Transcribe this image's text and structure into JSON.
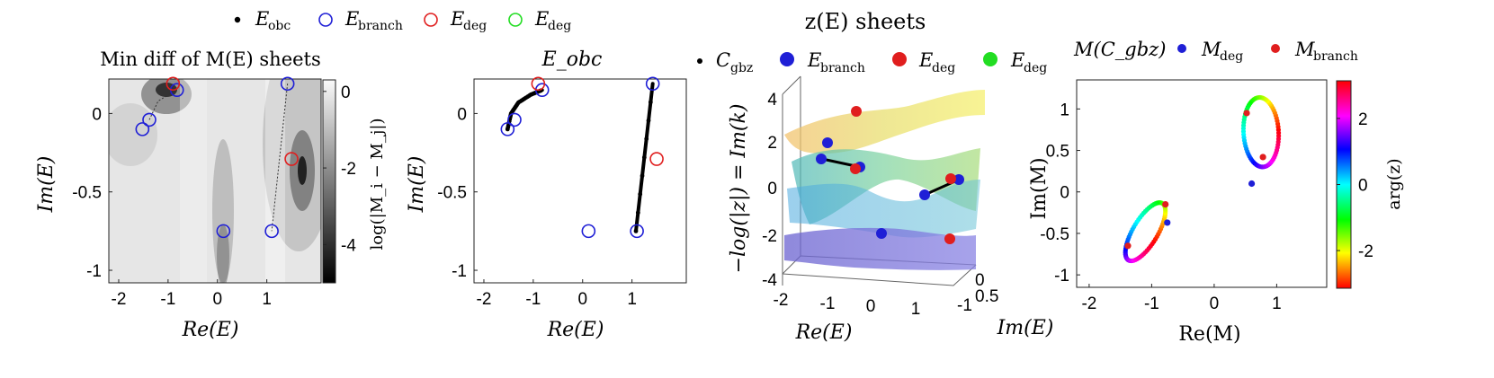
{
  "figure_legend": {
    "items": [
      {
        "label": "E",
        "sub": "obc",
        "marker": "dot",
        "color": "#000000"
      },
      {
        "label": "E",
        "sub": "branch",
        "marker": "ring",
        "color": "#1f1fd6"
      },
      {
        "label": "E",
        "sub": "deg",
        "marker": "ring",
        "color": "#e01e1e"
      },
      {
        "label": "E",
        "sub": "deg",
        "marker": "ring",
        "color": "#22dd22"
      }
    ]
  },
  "chart_data": [
    {
      "type": "heatmap",
      "title": "Min diff of M(E) sheets",
      "xlabel": "Re(E)",
      "ylabel": "Im(E)",
      "xlim": [
        -2.2,
        2.1
      ],
      "ylim": [
        -1.08,
        0.22
      ],
      "xticks": [
        "-2",
        "-1",
        "0",
        "1"
      ],
      "yticks": [
        "-1",
        "-0.5",
        "0"
      ],
      "xtick_values": [
        -2,
        -1,
        0,
        1
      ],
      "ytick_values": [
        -1,
        -0.5,
        0
      ],
      "colorbar": {
        "label": "log(|M_i − M_j|)",
        "ticks": [
          "0",
          "-2",
          "-4"
        ],
        "tick_values": [
          0,
          -2,
          -4
        ],
        "range": [
          -5,
          0.3
        ]
      },
      "branch_points": [
        [
          -1.52,
          -0.1
        ],
        [
          -1.38,
          -0.04
        ],
        [
          -0.82,
          0.15
        ],
        [
          1.42,
          0.19
        ],
        [
          1.1,
          -0.75
        ],
        [
          0.12,
          -0.75
        ]
      ],
      "deg_points": [
        [
          -0.9,
          0.19
        ],
        [
          1.5,
          -0.29
        ]
      ],
      "dotted_lines": [
        [
          [
            -1.38,
            -0.04
          ],
          [
            -1.2,
            0.08
          ],
          [
            -0.82,
            0.15
          ]
        ],
        [
          [
            1.42,
            0.19
          ],
          [
            1.1,
            -0.75
          ]
        ]
      ]
    },
    {
      "type": "scatter",
      "title": "E_obc",
      "xlabel": "Re(E)",
      "ylabel": "Im(E)",
      "xlim": [
        -2.2,
        2.1
      ],
      "ylim": [
        -1.08,
        0.22
      ],
      "xticks": [
        "-2",
        "-1",
        "0",
        "1"
      ],
      "yticks": [
        "-1",
        "-0.5",
        "0"
      ],
      "xtick_values": [
        -2,
        -1,
        0,
        1
      ],
      "ytick_values": [
        -1,
        -0.5,
        0
      ],
      "obc_arcs": [
        [
          [
            -1.52,
            -0.1
          ],
          [
            -1.45,
            0.0
          ],
          [
            -1.3,
            0.07
          ],
          [
            -1.05,
            0.12
          ],
          [
            -0.82,
            0.15
          ]
        ],
        [
          [
            1.08,
            -0.75
          ],
          [
            1.42,
            0.19
          ]
        ]
      ],
      "branch_points": [
        [
          -1.52,
          -0.1
        ],
        [
          -1.38,
          -0.04
        ],
        [
          -0.82,
          0.15
        ],
        [
          1.42,
          0.19
        ],
        [
          1.1,
          -0.75
        ],
        [
          0.12,
          -0.75
        ]
      ],
      "deg_points": [
        [
          -0.9,
          0.19
        ],
        [
          1.5,
          -0.29
        ]
      ]
    },
    {
      "type": "surface3d",
      "title": "z(E) sheets",
      "legend": [
        {
          "label": "C",
          "sub": "gbz",
          "marker": "dot-small",
          "color": "#000000"
        },
        {
          "label": "E",
          "sub": "branch",
          "marker": "dot",
          "color": "#1f1fd6"
        },
        {
          "label": "E",
          "sub": "deg",
          "marker": "dot",
          "color": "#e01e1e"
        },
        {
          "label": "E",
          "sub": "deg",
          "marker": "dot",
          "color": "#22dd22"
        }
      ],
      "xlabel": "Re(E)",
      "ylabel": "Im(E)",
      "zlabel": "−log(|z|) = Im(k)",
      "xticks": [
        "-2",
        "-1",
        "0",
        "1"
      ],
      "yticks": [
        "0.5",
        "0",
        "-1"
      ],
      "zticks": [
        "4",
        "2",
        "0",
        "-2",
        "-4"
      ],
      "ztick_values": [
        4,
        2,
        0,
        -2,
        -4
      ],
      "zlim": [
        -4,
        4
      ]
    },
    {
      "type": "scatter",
      "title": "M(C_gbz)",
      "legend": [
        {
          "label": "M",
          "sub": "deg",
          "marker": "dot",
          "color": "#1f1fd6"
        },
        {
          "label": "M",
          "sub": "branch",
          "marker": "dot",
          "color": "#e01e1e"
        }
      ],
      "xlabel": "Re(M)",
      "ylabel": "Im(M)",
      "xlim": [
        -2.2,
        1.8
      ],
      "ylim": [
        -1.15,
        1.35
      ],
      "xticks": [
        "-2",
        "-1",
        "0",
        "1"
      ],
      "yticks": [
        "1",
        "0.5",
        "0",
        "-0.5",
        "-1"
      ],
      "xtick_values": [
        -2,
        -1,
        0,
        1
      ],
      "ytick_values": [
        1,
        0.5,
        0,
        -0.5,
        -1
      ],
      "colorbar": {
        "label": "arg(z)",
        "ticks": [
          "2",
          "0",
          "-2"
        ],
        "tick_values": [
          2,
          0,
          -2
        ],
        "range": [
          -3.14,
          3.14
        ]
      },
      "loops": [
        {
          "center": [
            0.75,
            0.72
          ],
          "rx": 0.28,
          "ry": 0.42,
          "rot": 0.1
        },
        {
          "center": [
            -1.1,
            -0.48
          ],
          "rx": 0.18,
          "ry": 0.44,
          "rot": -0.72
        }
      ],
      "deg_points": [
        [
          0.6,
          0.1
        ],
        [
          -0.75,
          -0.37
        ]
      ],
      "branch_points": [
        [
          0.52,
          0.95
        ],
        [
          0.78,
          0.42
        ],
        [
          -1.38,
          -0.65
        ],
        [
          -0.78,
          -0.15
        ]
      ]
    }
  ]
}
